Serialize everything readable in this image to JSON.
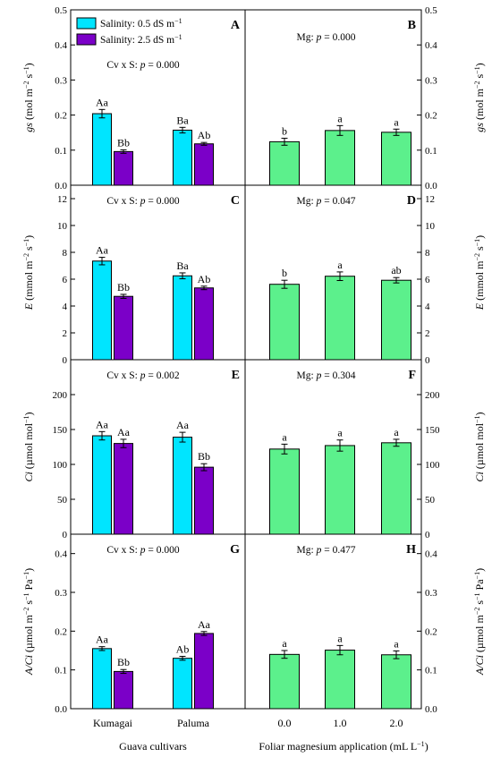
{
  "colors": {
    "low_salinity": "#00e5ff",
    "high_salinity": "#7b00c8",
    "magnesium": "#5cf08c"
  },
  "legend": {
    "items": [
      {
        "label": "Salinity: 0.5 dS m",
        "sup": "−1"
      },
      {
        "label": "Salinity: 2.5 dS m",
        "sup": "−1"
      }
    ]
  },
  "x_axis_left": {
    "title": "Guava cultivars",
    "categories": [
      "Kumagai",
      "Paluma"
    ]
  },
  "x_axis_right": {
    "title": "Foliar magnesium application (mL L",
    "title_sup": "−1",
    "title_end": ")",
    "categories": [
      "0.0",
      "1.0",
      "2.0"
    ]
  },
  "chart_data": [
    {
      "panel": "A",
      "type": "bar",
      "stat_text": "Cv x S: p = 0.000",
      "ylabel": "gs (mol m−2 s−1)",
      "ylim": [
        0,
        0.5
      ],
      "yticks": [
        "0.0",
        "0.1",
        "0.2",
        "0.3",
        "0.4",
        "0.5"
      ],
      "categories": [
        "Kumagai",
        "Paluma"
      ],
      "series": [
        {
          "name": "Salinity: 0.5 dS m−1",
          "values": [
            0.204,
            0.157
          ],
          "errors": [
            0.012,
            0.008
          ],
          "labels": [
            "Aa",
            "Ba"
          ]
        },
        {
          "name": "Salinity: 2.5 dS m−1",
          "values": [
            0.096,
            0.118
          ],
          "errors": [
            0.005,
            0.004
          ],
          "labels": [
            "Bb",
            "Ab"
          ]
        }
      ]
    },
    {
      "panel": "B",
      "type": "bar",
      "stat_text": "Mg: p = 0.000",
      "ylabel": "gs (mol m−2 s−1)",
      "ylim": [
        0,
        0.5
      ],
      "yticks": [
        "0.0",
        "0.1",
        "0.2",
        "0.3",
        "0.4",
        "0.5"
      ],
      "categories": [
        "0.0",
        "1.0",
        "2.0"
      ],
      "values": [
        0.124,
        0.156,
        0.151
      ],
      "errors": [
        0.01,
        0.014,
        0.009
      ],
      "labels": [
        "b",
        "a",
        "a"
      ]
    },
    {
      "panel": "C",
      "type": "bar",
      "stat_text": "Cv x S: p = 0.000",
      "ylabel": "E (mmol m−2 s−1)",
      "ylim": [
        0,
        13
      ],
      "yticks": [
        "0",
        "2",
        "4",
        "6",
        "8",
        "10",
        "12"
      ],
      "categories": [
        "Kumagai",
        "Paluma"
      ],
      "series": [
        {
          "name": "Salinity: 0.5 dS m−1",
          "values": [
            7.35,
            6.25
          ],
          "errors": [
            0.28,
            0.22
          ],
          "labels": [
            "Aa",
            "Ba"
          ]
        },
        {
          "name": "Salinity: 2.5 dS m−1",
          "values": [
            4.72,
            5.35
          ],
          "errors": [
            0.15,
            0.13
          ],
          "labels": [
            "Bb",
            "Ab"
          ]
        }
      ]
    },
    {
      "panel": "D",
      "type": "bar",
      "stat_text": "Mg: p = 0.047",
      "ylabel": "E (mmol m−2 s−1)",
      "ylim": [
        0,
        13
      ],
      "yticks": [
        "0",
        "2",
        "4",
        "6",
        "8",
        "10",
        "12"
      ],
      "categories": [
        "0.0",
        "1.0",
        "2.0"
      ],
      "values": [
        5.62,
        6.22,
        5.92
      ],
      "errors": [
        0.3,
        0.32,
        0.2
      ],
      "labels": [
        "b",
        "a",
        "ab"
      ]
    },
    {
      "panel": "E",
      "type": "bar",
      "stat_text": "Cv x S: p = 0.002",
      "ylabel": "Ci (µmol mol−1)",
      "ylim": [
        0,
        250
      ],
      "yticks": [
        "0",
        "50",
        "100",
        "150",
        "200"
      ],
      "categories": [
        "Kumagai",
        "Paluma"
      ],
      "series": [
        {
          "name": "Salinity: 0.5 dS m−1",
          "values": [
            141,
            139
          ],
          "errors": [
            6,
            7
          ],
          "labels": [
            "Aa",
            "Aa"
          ]
        },
        {
          "name": "Salinity: 2.5 dS m−1",
          "values": [
            130,
            96
          ],
          "errors": [
            6,
            5
          ],
          "labels": [
            "Aa",
            "Bb"
          ]
        }
      ]
    },
    {
      "panel": "F",
      "type": "bar",
      "stat_text": "Mg: p = 0.304",
      "ylabel": "Ci (µmol mol−1)",
      "ylim": [
        0,
        250
      ],
      "yticks": [
        "0",
        "50",
        "100",
        "150",
        "200"
      ],
      "categories": [
        "0.0",
        "1.0",
        "2.0"
      ],
      "values": [
        122,
        127,
        131
      ],
      "errors": [
        7,
        8,
        5
      ],
      "labels": [
        "a",
        "a",
        "a"
      ]
    },
    {
      "panel": "G",
      "type": "bar",
      "stat_text": "Cv x S: p = 0.000",
      "ylabel": "A/Ci (µmol m−2 s−1 Pa−1)",
      "ylim": [
        0,
        0.45
      ],
      "yticks": [
        "0.0",
        "0.1",
        "0.2",
        "0.3",
        "0.4"
      ],
      "categories": [
        "Kumagai",
        "Paluma"
      ],
      "series": [
        {
          "name": "Salinity: 0.5 dS m−1",
          "values": [
            0.155,
            0.13
          ],
          "errors": [
            0.005,
            0.005
          ],
          "labels": [
            "Aa",
            "Ab"
          ]
        },
        {
          "name": "Salinity: 2.5 dS m−1",
          "values": [
            0.096,
            0.194
          ],
          "errors": [
            0.005,
            0.005
          ],
          "labels": [
            "Bb",
            "Aa"
          ]
        }
      ]
    },
    {
      "panel": "H",
      "type": "bar",
      "stat_text": "Mg: p = 0.477",
      "ylabel": "A/Ci (µmol m−2 s−1 Pa−1)",
      "ylim": [
        0,
        0.45
      ],
      "yticks": [
        "0.0",
        "0.1",
        "0.2",
        "0.3",
        "0.4"
      ],
      "categories": [
        "0.0",
        "1.0",
        "2.0"
      ],
      "values": [
        0.14,
        0.151,
        0.139
      ],
      "errors": [
        0.01,
        0.012,
        0.01
      ],
      "labels": [
        "a",
        "a",
        "a"
      ]
    }
  ]
}
